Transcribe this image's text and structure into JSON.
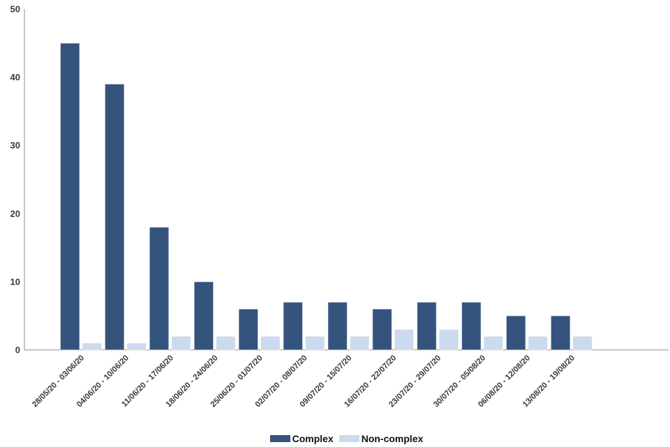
{
  "chart_data": {
    "type": "bar",
    "title": "",
    "categories": [
      "28/05/20 - 03/06/20",
      "04/06/20 - 10/06/20",
      "11/06/20 - 17/06/20",
      "18/06/20 - 24/06/20",
      "25/06/20 - 01/07/20",
      "02/07/20 - 08/07/20",
      "09/07/20 - 15/07/20",
      "16/07/20 - 22/07/20",
      "23/07/20 - 29/07/20",
      "30/07/20 - 05/08/20",
      "06/08/20 - 12/08/20",
      "13/08/20 - 19/08/20"
    ],
    "series": [
      {
        "name": "Complex",
        "color": "#34547E",
        "values": [
          45,
          39,
          18,
          10,
          6,
          7,
          7,
          6,
          7,
          7,
          5,
          5
        ]
      },
      {
        "name": "Non-complex",
        "color": "#CBDAEC",
        "values": [
          1,
          1,
          2,
          2,
          2,
          2,
          2,
          3,
          3,
          2,
          2,
          2
        ]
      }
    ],
    "xlabel": "",
    "ylabel": "",
    "ylim": [
      0,
      50
    ],
    "yticks": [
      0,
      10,
      20,
      30,
      40,
      50
    ],
    "grid": false,
    "legend_position": "bottom",
    "axis_color": "#8c8c8c",
    "tick_label_color": "#3b3b3b"
  }
}
